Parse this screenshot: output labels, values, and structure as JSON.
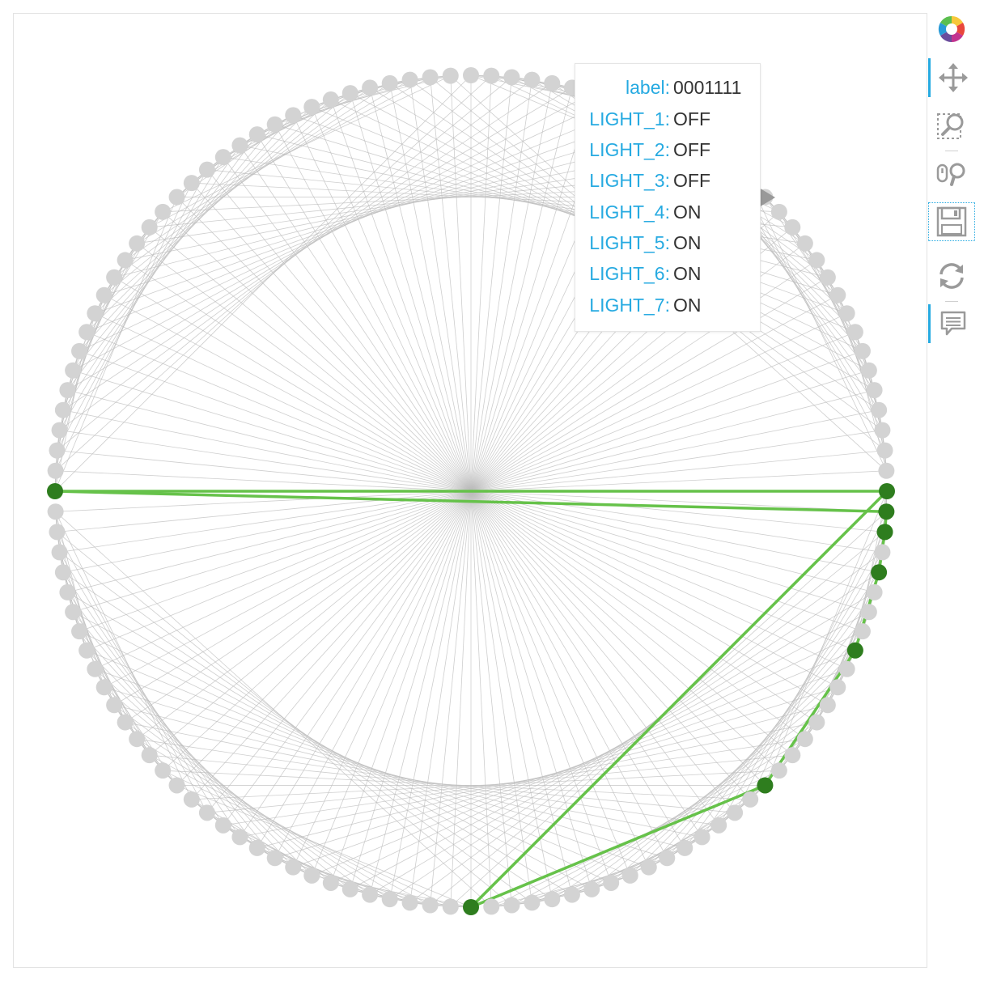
{
  "graph": {
    "node_count": 128,
    "highlighted_nodes": [
      0,
      1,
      2,
      4,
      8,
      16,
      32,
      64
    ],
    "highlighted_edges": [
      [
        0,
        64
      ],
      [
        64,
        1
      ],
      [
        1,
        2
      ],
      [
        2,
        4
      ],
      [
        4,
        8
      ],
      [
        8,
        16
      ],
      [
        16,
        32
      ],
      [
        32,
        0
      ]
    ],
    "colors": {
      "node": "#d3d3d3",
      "node_highlight": "#2e7d1e",
      "edge": "#bdbdbd",
      "edge_highlight": "#66c24a",
      "frame": "#e3e3e3"
    }
  },
  "tooltip": {
    "rows": [
      {
        "key": "label:",
        "value": "0001111"
      },
      {
        "key": "LIGHT_1:",
        "value": "OFF"
      },
      {
        "key": "LIGHT_2:",
        "value": "OFF"
      },
      {
        "key": "LIGHT_3:",
        "value": "OFF"
      },
      {
        "key": "LIGHT_4:",
        "value": "ON"
      },
      {
        "key": "LIGHT_5:",
        "value": "ON"
      },
      {
        "key": "LIGHT_6:",
        "value": "ON"
      },
      {
        "key": "LIGHT_7:",
        "value": "ON"
      }
    ]
  },
  "toolbar": {
    "tools": [
      {
        "name": "bokeh-logo-icon",
        "active": false
      },
      {
        "name": "pan-tool-icon",
        "active": true
      },
      {
        "name": "box-zoom-tool-icon",
        "active": false
      },
      {
        "name": "wheel-zoom-tool-icon",
        "active": false
      },
      {
        "name": "save-tool-icon",
        "active": false
      },
      {
        "name": "reset-tool-icon",
        "active": false
      },
      {
        "name": "hover-tool-icon",
        "active": true
      }
    ]
  }
}
